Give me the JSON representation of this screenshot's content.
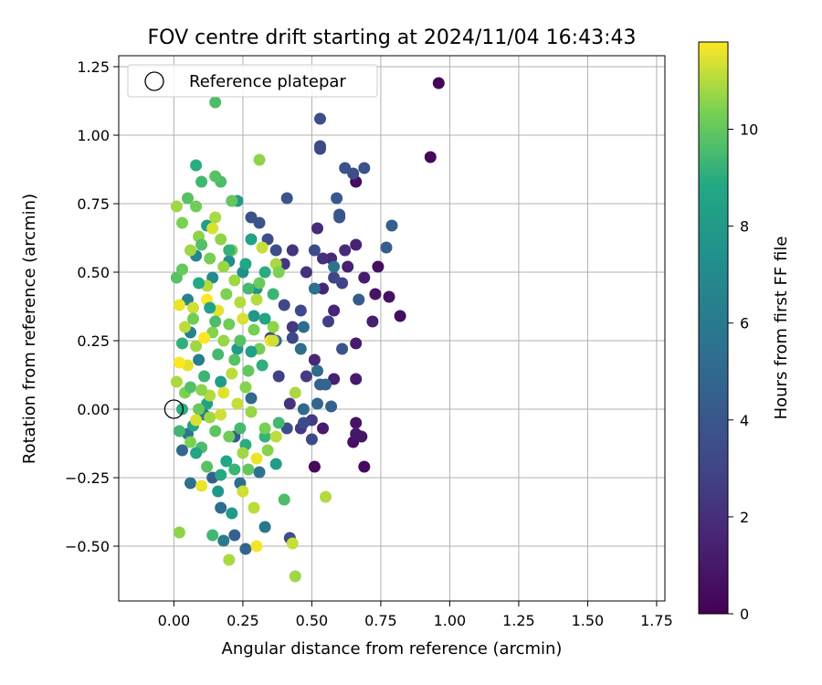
{
  "chart_data": {
    "type": "scatter",
    "title": "FOV centre drift starting at 2024/11/04 16:43:43",
    "xlabel": "Angular distance from reference (arcmin)",
    "ylabel": "Rotation from reference (arcmin)",
    "xlim": [
      -0.2,
      1.78
    ],
    "ylim": [
      -0.7,
      1.29
    ],
    "xticks": [
      "0.00",
      "0.25",
      "0.50",
      "0.75",
      "1.00",
      "1.25",
      "1.50",
      "1.75"
    ],
    "xtick_values": [
      0,
      0.25,
      0.5,
      0.75,
      1.0,
      1.25,
      1.5,
      1.75
    ],
    "yticks": [
      "−0.50",
      "−0.25",
      "0.00",
      "0.25",
      "0.50",
      "0.75",
      "1.00",
      "1.25"
    ],
    "ytick_values": [
      -0.5,
      -0.25,
      0,
      0.25,
      0.5,
      0.75,
      1.0,
      1.25
    ],
    "grid": true,
    "legend": {
      "position": "top-left",
      "entries": [
        "Reference platepar"
      ]
    },
    "reference_point": {
      "x": 0.0,
      "y": 0.0
    },
    "colorbar": {
      "label": "Hours from first FF file",
      "colormap": "viridis",
      "range": [
        0,
        11.8
      ],
      "ticks": [
        "0",
        "2",
        "4",
        "6",
        "8",
        "10"
      ],
      "tick_values": [
        0,
        2,
        4,
        6,
        8,
        10
      ]
    },
    "series": [
      {
        "points": [
          [
            0.96,
            1.19,
            0.2
          ],
          [
            0.93,
            0.92,
            0.3
          ],
          [
            0.66,
            0.83,
            0.5
          ],
          [
            0.74,
            0.52,
            0.6
          ],
          [
            0.78,
            0.41,
            0.7
          ],
          [
            0.82,
            0.34,
            0.5
          ],
          [
            0.73,
            0.42,
            0.8
          ],
          [
            0.69,
            0.48,
            1.2
          ],
          [
            0.72,
            0.32,
            1.3
          ],
          [
            0.66,
            0.6,
            1.5
          ],
          [
            0.63,
            0.52,
            1.4
          ],
          [
            0.57,
            0.55,
            1.7
          ],
          [
            0.54,
            0.44,
            1.6
          ],
          [
            0.66,
            0.24,
            1.2
          ],
          [
            0.66,
            0.11,
            1.1
          ],
          [
            0.66,
            -0.05,
            0.8
          ],
          [
            0.65,
            -0.12,
            0.6
          ],
          [
            0.69,
            -0.21,
            0.4
          ],
          [
            0.51,
            -0.21,
            0.3
          ],
          [
            0.54,
            -0.07,
            1.1
          ],
          [
            0.58,
            0.11,
            1.3
          ],
          [
            0.58,
            0.36,
            1.6
          ],
          [
            0.51,
            0.18,
            1.7
          ],
          [
            0.62,
            0.58,
            1.9
          ],
          [
            0.52,
            0.66,
            1.8
          ],
          [
            0.66,
            -0.09,
            1.0
          ],
          [
            0.68,
            -0.1,
            0.9
          ],
          [
            0.54,
            0.55,
            2.0
          ],
          [
            0.48,
            0.5,
            2.1
          ],
          [
            0.43,
            0.58,
            2.2
          ],
          [
            0.4,
            0.53,
            2.3
          ],
          [
            0.43,
            0.3,
            2.4
          ],
          [
            0.42,
            0.02,
            2.2
          ],
          [
            0.46,
            -0.07,
            2.5
          ],
          [
            0.5,
            -0.04,
            2.6
          ],
          [
            0.38,
            0.12,
            2.8
          ],
          [
            0.48,
            0.12,
            2.6
          ],
          [
            0.56,
            0.32,
            2.7
          ],
          [
            0.61,
            0.46,
            2.9
          ],
          [
            0.58,
            0.48,
            3.1
          ],
          [
            0.53,
            0.95,
            3.2
          ],
          [
            0.53,
            0.96,
            3.3
          ],
          [
            0.53,
            1.06,
            3.6
          ],
          [
            0.65,
            0.86,
            3.5
          ],
          [
            0.69,
            0.88,
            3.7
          ],
          [
            0.62,
            0.88,
            3.8
          ],
          [
            0.6,
            0.71,
            3.9
          ],
          [
            0.6,
            0.7,
            4.0
          ],
          [
            0.59,
            0.77,
            4.2
          ],
          [
            0.41,
            0.77,
            3.9
          ],
          [
            0.31,
            0.68,
            3.8
          ],
          [
            0.28,
            0.7,
            3.7
          ],
          [
            0.34,
            0.62,
            3.6
          ],
          [
            0.37,
            0.58,
            3.5
          ],
          [
            0.51,
            0.58,
            3.4
          ],
          [
            0.4,
            0.38,
            3.3
          ],
          [
            0.46,
            0.36,
            3.2
          ],
          [
            0.43,
            0.26,
            3.1
          ],
          [
            0.35,
            0.26,
            3.0
          ],
          [
            0.41,
            -0.07,
            3.6
          ],
          [
            0.47,
            -0.05,
            3.4
          ],
          [
            0.5,
            -0.11,
            3.3
          ],
          [
            0.42,
            -0.47,
            3.5
          ],
          [
            0.61,
            0.22,
            3.8
          ],
          [
            0.67,
            0.4,
            4.3
          ],
          [
            0.77,
            0.59,
            4.4
          ],
          [
            0.79,
            0.67,
            4.5
          ],
          [
            0.53,
            0.09,
            4.6
          ],
          [
            0.55,
            0.09,
            4.8
          ],
          [
            0.57,
            0.01,
            4.7
          ],
          [
            0.52,
            0.02,
            4.9
          ],
          [
            0.47,
            0.0,
            5.0
          ],
          [
            0.52,
            0.14,
            5.1
          ],
          [
            0.47,
            0.3,
            5.3
          ],
          [
            0.51,
            0.44,
            5.5
          ],
          [
            0.58,
            0.52,
            5.6
          ],
          [
            0.46,
            0.22,
            5.4
          ],
          [
            0.37,
            0.25,
            5.2
          ],
          [
            0.28,
            0.04,
            5.0
          ],
          [
            0.26,
            -0.51,
            4.9
          ],
          [
            0.22,
            -0.46,
            4.6
          ],
          [
            0.14,
            -0.25,
            4.4
          ],
          [
            0.22,
            -0.1,
            4.3
          ],
          [
            0.17,
            -0.36,
            5.2
          ],
          [
            0.24,
            -0.27,
            5.4
          ],
          [
            0.31,
            -0.23,
            5.6
          ],
          [
            0.33,
            -0.43,
            5.8
          ],
          [
            0.18,
            -0.48,
            6.0
          ],
          [
            0.03,
            -0.15,
            5.0
          ],
          [
            0.06,
            -0.27,
            5.5
          ],
          [
            0.05,
            -0.09,
            5.8
          ],
          [
            0.11,
            -0.02,
            6.0
          ],
          [
            0.09,
            0.18,
            6.2
          ],
          [
            0.06,
            0.28,
            6.4
          ],
          [
            0.05,
            0.4,
            6.6
          ],
          [
            0.08,
            0.56,
            6.8
          ],
          [
            0.14,
            0.48,
            7.0
          ],
          [
            0.2,
            0.54,
            7.2
          ],
          [
            0.25,
            0.5,
            7.4
          ],
          [
            0.3,
            0.44,
            7.6
          ],
          [
            0.29,
            0.34,
            7.8
          ],
          [
            0.23,
            0.22,
            8.0
          ],
          [
            0.17,
            0.1,
            8.2
          ],
          [
            0.12,
            0.02,
            8.4
          ],
          [
            0.07,
            -0.06,
            8.6
          ],
          [
            0.19,
            -0.19,
            8.8
          ],
          [
            0.26,
            -0.13,
            9.0
          ],
          [
            0.33,
            -0.1,
            9.2
          ],
          [
            0.38,
            -0.05,
            9.4
          ],
          [
            0.4,
            -0.33,
            9.6
          ],
          [
            0.23,
            0.76,
            8.0
          ],
          [
            0.12,
            0.67,
            8.2
          ],
          [
            0.08,
            0.89,
            9.0
          ],
          [
            0.1,
            0.83,
            9.4
          ],
          [
            0.17,
            0.83,
            9.6
          ],
          [
            0.15,
            0.85,
            9.8
          ],
          [
            0.21,
            0.76,
            10.0
          ],
          [
            0.05,
            0.77,
            9.8
          ],
          [
            0.08,
            0.74,
            10.2
          ],
          [
            0.01,
            0.74,
            10.8
          ],
          [
            0.03,
            0.68,
            10.4
          ],
          [
            0.09,
            0.63,
            10.6
          ],
          [
            0.15,
            0.7,
            10.9
          ],
          [
            0.14,
            0.66,
            11.4
          ],
          [
            0.15,
            1.12,
            9.6
          ],
          [
            0.31,
            0.91,
            10.6
          ],
          [
            0.32,
            0.59,
            11.2
          ],
          [
            0.37,
            0.53,
            10.9
          ],
          [
            0.38,
            0.5,
            10.4
          ],
          [
            0.21,
            0.58,
            10.2
          ],
          [
            0.18,
            0.52,
            10.7
          ],
          [
            0.12,
            0.45,
            11.0
          ],
          [
            0.07,
            0.37,
            11.3
          ],
          [
            0.02,
            0.38,
            11.6
          ],
          [
            0.04,
            0.3,
            11.1
          ],
          [
            0.08,
            0.23,
            10.8
          ],
          [
            0.14,
            0.28,
            10.5
          ],
          [
            0.2,
            0.31,
            10.2
          ],
          [
            0.25,
            0.33,
            11.4
          ],
          [
            0.3,
            0.4,
            11.0
          ],
          [
            0.36,
            0.3,
            10.6
          ],
          [
            0.35,
            0.25,
            11.7
          ],
          [
            0.31,
            0.22,
            10.3
          ],
          [
            0.27,
            0.14,
            10.0
          ],
          [
            0.22,
            0.18,
            9.8
          ],
          [
            0.16,
            0.2,
            9.5
          ],
          [
            0.11,
            0.12,
            9.3
          ],
          [
            0.05,
            0.16,
            11.5
          ],
          [
            0.02,
            0.17,
            11.8
          ],
          [
            0.01,
            0.1,
            10.9
          ],
          [
            0.04,
            0.06,
            10.4
          ],
          [
            0.09,
            0.0,
            10.1
          ],
          [
            0.13,
            0.05,
            11.0
          ],
          [
            0.18,
            0.06,
            11.5
          ],
          [
            0.23,
            0.02,
            11.2
          ],
          [
            0.28,
            -0.01,
            10.7
          ],
          [
            0.33,
            -0.07,
            10.3
          ],
          [
            0.37,
            -0.1,
            11.1
          ],
          [
            0.34,
            -0.15,
            10.5
          ],
          [
            0.3,
            -0.18,
            11.6
          ],
          [
            0.25,
            -0.16,
            10.8
          ],
          [
            0.2,
            -0.1,
            10.2
          ],
          [
            0.15,
            -0.08,
            9.9
          ],
          [
            0.1,
            -0.14,
            9.6
          ],
          [
            0.06,
            -0.12,
            10.4
          ],
          [
            0.02,
            -0.08,
            9.4
          ],
          [
            0.03,
            0.0,
            9.0
          ],
          [
            0.02,
            -0.45,
            10.6
          ],
          [
            0.1,
            -0.28,
            11.6
          ],
          [
            0.14,
            -0.46,
            9.4
          ],
          [
            0.2,
            -0.55,
            10.9
          ],
          [
            0.25,
            -0.3,
            11.3
          ],
          [
            0.29,
            -0.36,
            11.1
          ],
          [
            0.3,
            -0.5,
            11.7
          ],
          [
            0.43,
            -0.49,
            11.2
          ],
          [
            0.44,
            -0.61,
            10.8
          ],
          [
            0.55,
            -0.32,
            11.0
          ],
          [
            0.44,
            0.06,
            10.9
          ],
          [
            0.36,
            0.25,
            11.3
          ],
          [
            0.01,
            0.48,
            9.8
          ],
          [
            0.03,
            0.51,
            10.0
          ],
          [
            0.06,
            0.58,
            10.8
          ],
          [
            0.1,
            0.6,
            9.7
          ],
          [
            0.13,
            0.55,
            10.3
          ],
          [
            0.17,
            0.62,
            10.6
          ],
          [
            0.2,
            0.58,
            9.2
          ],
          [
            0.22,
            0.47,
            10.8
          ],
          [
            0.24,
            0.39,
            11.0
          ],
          [
            0.27,
            0.44,
            9.5
          ],
          [
            0.31,
            0.46,
            10.1
          ],
          [
            0.33,
            0.5,
            9.0
          ],
          [
            0.36,
            0.42,
            9.3
          ],
          [
            0.12,
            0.4,
            11.9
          ],
          [
            0.16,
            0.36,
            11.5
          ],
          [
            0.19,
            0.42,
            10.4
          ],
          [
            0.07,
            0.33,
            10.2
          ],
          [
            0.11,
            0.26,
            11.8
          ],
          [
            0.15,
            0.32,
            9.6
          ],
          [
            0.18,
            0.25,
            10.7
          ],
          [
            0.21,
            0.13,
            11.1
          ],
          [
            0.26,
            0.08,
            10.5
          ],
          [
            0.24,
            0.25,
            9.8
          ],
          [
            0.29,
            0.29,
            10.3
          ],
          [
            0.32,
            0.16,
            9.1
          ],
          [
            0.06,
            0.08,
            9.7
          ],
          [
            0.1,
            0.07,
            10.6
          ],
          [
            0.08,
            -0.04,
            11.4
          ],
          [
            0.13,
            -0.03,
            10.8
          ],
          [
            0.17,
            -0.02,
            11.3
          ],
          [
            0.24,
            -0.07,
            9.5
          ],
          [
            0.27,
            -0.22,
            10.0
          ],
          [
            0.22,
            -0.22,
            9.3
          ],
          [
            0.17,
            -0.24,
            8.9
          ],
          [
            0.12,
            -0.21,
            9.8
          ],
          [
            0.08,
            -0.16,
            8.6
          ],
          [
            0.28,
            0.62,
            8.4
          ],
          [
            0.26,
            0.53,
            8.7
          ],
          [
            0.09,
            0.46,
            8.9
          ],
          [
            0.13,
            0.37,
            8.5
          ],
          [
            0.03,
            0.24,
            9.1
          ],
          [
            0.28,
            0.21,
            8.3
          ],
          [
            0.33,
            0.33,
            8.6
          ],
          [
            0.37,
            -0.2,
            8.2
          ],
          [
            0.21,
            -0.38,
            8.0
          ],
          [
            0.16,
            -0.3,
            7.8
          ]
        ]
      }
    ]
  }
}
